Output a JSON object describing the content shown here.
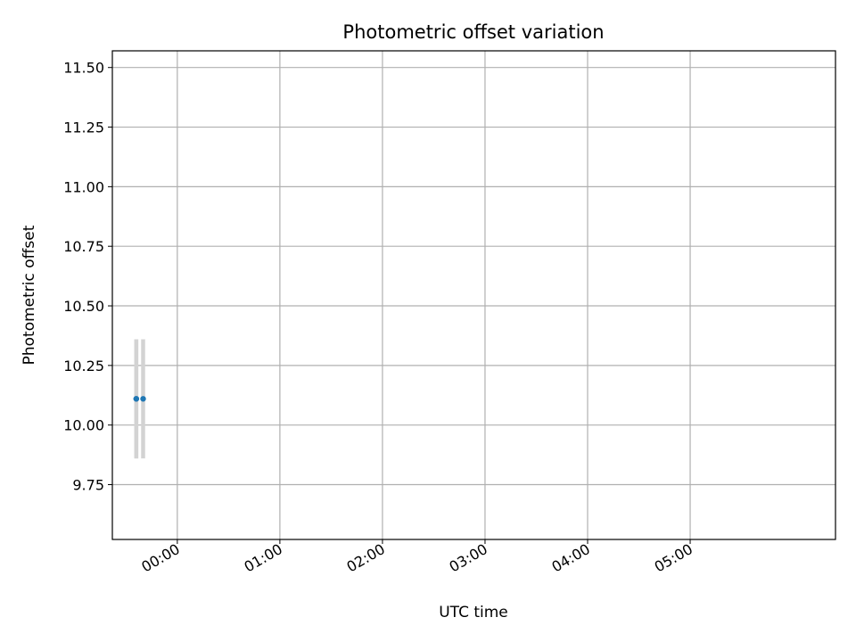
{
  "chart_data": {
    "type": "scatter",
    "title": "Photometric offset variation",
    "xlabel": "UTC time",
    "ylabel": "Photometric offset",
    "x_ticks": [
      "00:00",
      "01:00",
      "02:00",
      "03:00",
      "04:00",
      "05:00"
    ],
    "y_ticks": [
      "9.75",
      "10.00",
      "10.25",
      "10.50",
      "10.75",
      "11.00",
      "11.25",
      "11.50"
    ],
    "xlim": [
      "23:22",
      "06:25"
    ],
    "ylim": [
      9.52,
      11.57
    ],
    "grid": true,
    "marker_color": "#1f77b4",
    "errorbar_color": "#d3d3d3",
    "series": [
      {
        "points": [
          {
            "x": "23:40",
            "y": 10.11,
            "err": 0.25
          },
          {
            "x": "23:36",
            "y": 10.11,
            "err": 0.25
          },
          {
            "x": "23:36",
            "y": 10.11,
            "err": 0.25
          }
        ]
      }
    ]
  }
}
